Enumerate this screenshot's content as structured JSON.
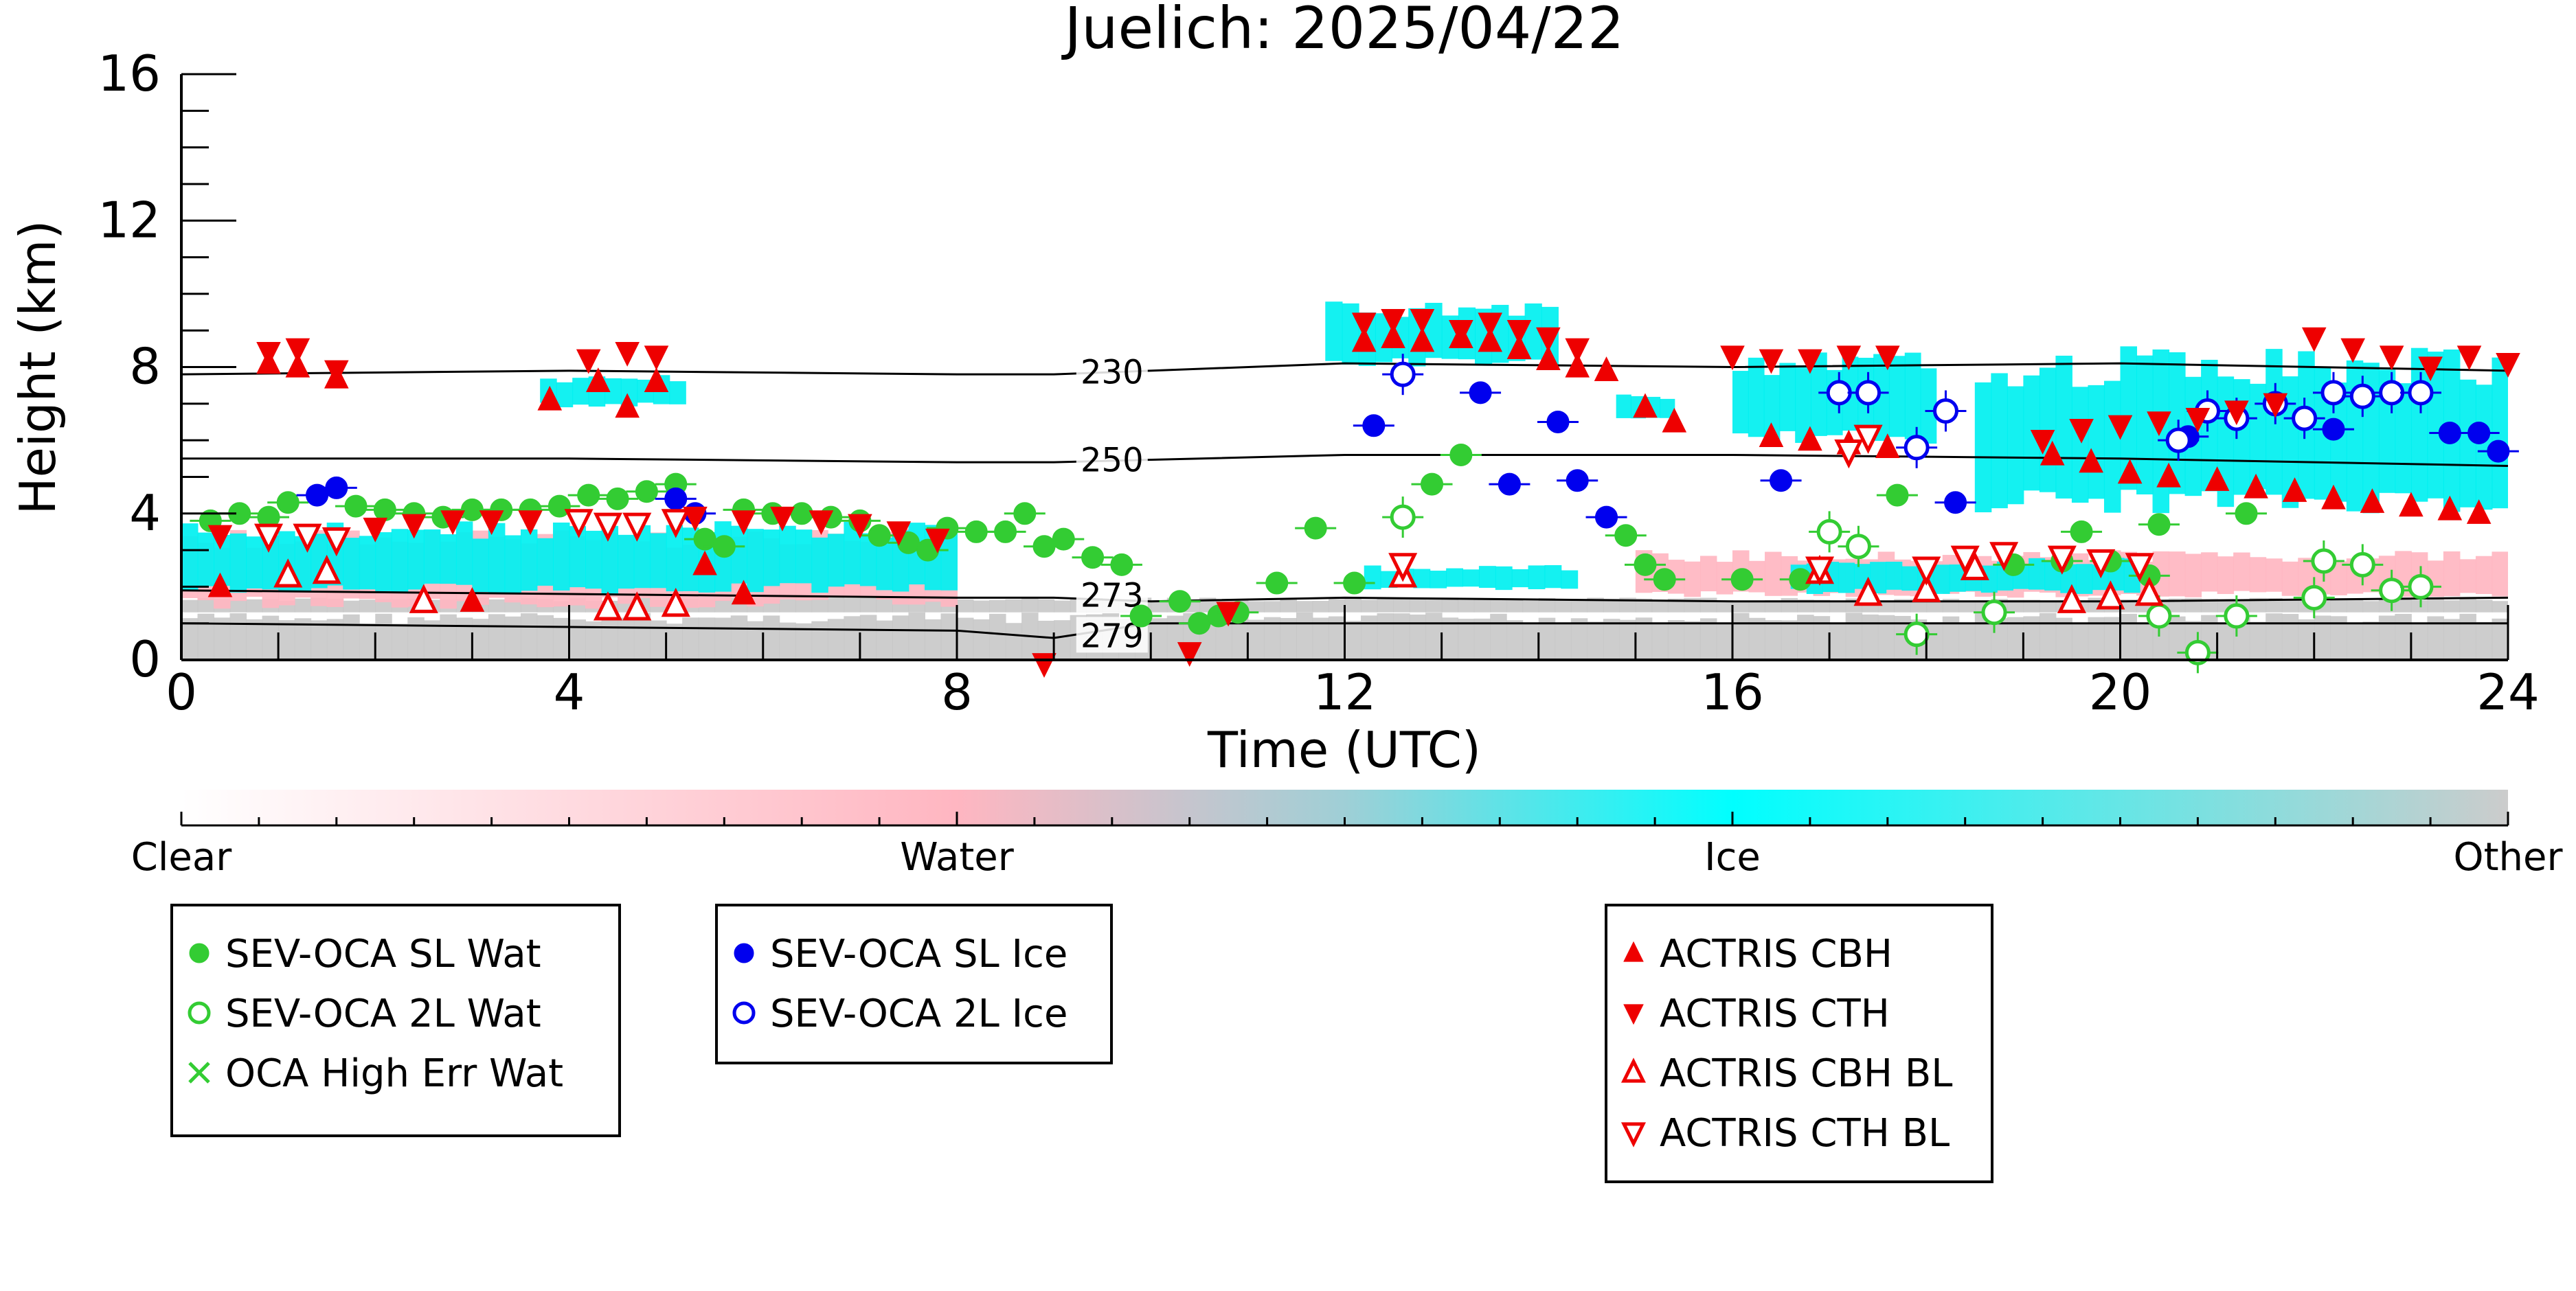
{
  "chart_data": {
    "type": "scatter",
    "title": "Juelich: 2025/04/22",
    "xlabel": "Time (UTC)",
    "ylabel": "Height (km)",
    "xlim": [
      0,
      24
    ],
    "ylim": [
      0,
      16
    ],
    "x_ticks": [
      0,
      4,
      8,
      12,
      16,
      20,
      24
    ],
    "y_ticks": [
      0,
      4,
      8,
      12,
      16
    ],
    "grid": false,
    "colorbar": {
      "labels": [
        "Clear",
        "Water",
        "Ice",
        "Other"
      ],
      "stops": [
        {
          "offset": 0.0,
          "color": "#ffffff"
        },
        {
          "offset": 0.333,
          "color": "#ffb6c1"
        },
        {
          "offset": 0.5,
          "color": "#9fcfd6"
        },
        {
          "offset": 0.667,
          "color": "#00ffff"
        },
        {
          "offset": 1.0,
          "color": "#cccccc"
        }
      ]
    },
    "colors": {
      "water": "#33cc33",
      "ice": "#0000ee",
      "actris": "#ee0000",
      "cloud_ice": "#00f0f0",
      "cloud_water": "#ffb6c1",
      "other": "#c8c8c8",
      "isotherm": "#000000"
    },
    "isotherms": [
      {
        "label": "230",
        "x": [
          0,
          4,
          8,
          9,
          12,
          16,
          20,
          24
        ],
        "y": [
          7.8,
          7.9,
          7.8,
          7.8,
          8.1,
          8.0,
          8.1,
          7.9
        ]
      },
      {
        "label": "250",
        "x": [
          0,
          4,
          8,
          9,
          12,
          16,
          20,
          24
        ],
        "y": [
          5.5,
          5.5,
          5.4,
          5.4,
          5.6,
          5.6,
          5.5,
          5.3
        ]
      },
      {
        "label": "273",
        "x": [
          0,
          4,
          8,
          9,
          10,
          12,
          16,
          20,
          24
        ],
        "y": [
          1.9,
          1.8,
          1.7,
          1.7,
          1.6,
          1.7,
          1.6,
          1.6,
          1.7
        ]
      },
      {
        "label": "279",
        "x": [
          0,
          4,
          8,
          9,
          10,
          12,
          16,
          20,
          24
        ],
        "y": [
          1.0,
          0.9,
          0.8,
          0.6,
          1.0,
          1.0,
          1.0,
          1.0,
          1.0
        ]
      }
    ],
    "legends": [
      {
        "entries": [
          {
            "label": "SEV-OCA SL Wat",
            "marker": "filled-circle",
            "color": "#33cc33"
          },
          {
            "label": "SEV-OCA 2L Wat",
            "marker": "open-circle",
            "color": "#33cc33"
          },
          {
            "label": "OCA High Err Wat",
            "marker": "cross",
            "color": "#33cc33"
          }
        ]
      },
      {
        "entries": [
          {
            "label": "SEV-OCA SL Ice",
            "marker": "filled-circle",
            "color": "#0000ee"
          },
          {
            "label": "SEV-OCA 2L Ice",
            "marker": "open-circle",
            "color": "#0000ee"
          }
        ]
      },
      {
        "entries": [
          {
            "label": "ACTRIS CBH",
            "marker": "filled-triangle-up",
            "color": "#ee0000"
          },
          {
            "label": "ACTRIS CTH",
            "marker": "filled-triangle-down",
            "color": "#ee0000"
          },
          {
            "label": "ACTRIS CBH BL",
            "marker": "open-triangle-up",
            "color": "#ee0000"
          },
          {
            "label": "ACTRIS CTH BL",
            "marker": "open-triangle-down",
            "color": "#ee0000"
          }
        ]
      }
    ],
    "cloud_regions": [
      {
        "class": "other",
        "x0": 0,
        "x1": 24,
        "y0": 0,
        "y1": 1.3
      },
      {
        "class": "other",
        "x0": 0,
        "x1": 24,
        "y0": 1.3,
        "y1": 1.7
      },
      {
        "class": "water",
        "x0": 0,
        "x1": 8.0,
        "y0": 1.4,
        "y1": 3.6
      },
      {
        "class": "ice",
        "x0": 0,
        "x1": 8.0,
        "y0": 1.8,
        "y1": 3.8
      },
      {
        "class": "ice",
        "x0": 3.7,
        "x1": 5.2,
        "y0": 6.9,
        "y1": 7.8
      },
      {
        "class": "ice",
        "x0": 11.8,
        "x1": 14.2,
        "y0": 8.0,
        "y1": 9.8
      },
      {
        "class": "ice",
        "x0": 14.8,
        "x1": 15.4,
        "y0": 6.5,
        "y1": 7.3
      },
      {
        "class": "ice",
        "x0": 16.0,
        "x1": 18.1,
        "y0": 5.9,
        "y1": 8.4
      },
      {
        "class": "ice",
        "x0": 18.5,
        "x1": 24.0,
        "y0": 4.0,
        "y1": 8.6
      },
      {
        "class": "water",
        "x0": 15.0,
        "x1": 24.0,
        "y0": 1.7,
        "y1": 3.0
      },
      {
        "class": "ice",
        "x0": 16.6,
        "x1": 20.2,
        "y0": 1.8,
        "y1": 2.8
      },
      {
        "class": "ice",
        "x0": 12.2,
        "x1": 14.4,
        "y0": 1.9,
        "y1": 2.6
      }
    ],
    "series": [
      {
        "name": "SEV-OCA SL Wat",
        "marker": "filled-circle",
        "color": "#33cc33",
        "x": [
          0.3,
          0.6,
          0.9,
          1.1,
          1.8,
          2.1,
          2.4,
          2.7,
          3.0,
          3.3,
          3.6,
          3.9,
          4.2,
          4.5,
          4.8,
          5.1,
          5.4,
          5.6,
          5.8,
          6.1,
          6.4,
          6.7,
          7.0,
          7.2,
          7.5,
          7.7,
          7.9,
          8.2,
          8.5,
          8.7,
          8.9,
          9.1,
          9.4,
          9.7,
          9.9,
          10.3,
          10.5,
          10.7,
          10.9,
          11.3,
          11.7,
          12.1,
          12.9,
          13.2,
          14.9,
          15.1,
          15.3,
          16.1,
          16.7,
          17.7,
          18.9,
          19.4,
          19.6,
          19.9,
          20.3,
          20.4,
          21.3
        ],
        "y": [
          3.8,
          4.0,
          3.9,
          4.3,
          4.2,
          4.1,
          4.0,
          3.9,
          4.1,
          4.1,
          4.1,
          4.2,
          4.5,
          4.4,
          4.6,
          4.8,
          3.3,
          3.1,
          4.1,
          4.0,
          4.0,
          3.9,
          3.8,
          3.4,
          3.2,
          3.0,
          3.6,
          3.5,
          3.5,
          4.0,
          3.1,
          3.3,
          2.8,
          2.6,
          1.2,
          1.6,
          1.0,
          1.2,
          1.3,
          2.1,
          3.6,
          2.1,
          4.8,
          5.6,
          3.4,
          2.6,
          2.2,
          2.2,
          2.2,
          4.5,
          2.6,
          2.7,
          3.5,
          2.7,
          2.3,
          3.7,
          4.0
        ]
      },
      {
        "name": "SEV-OCA 2L Wat",
        "marker": "open-circle",
        "color": "#33cc33",
        "x": [
          12.6,
          17.0,
          17.3,
          17.9,
          18.7,
          20.4,
          20.8,
          21.2,
          22.0,
          22.1,
          22.5,
          22.8,
          23.1
        ],
        "y": [
          3.9,
          3.5,
          3.1,
          0.7,
          1.3,
          1.2,
          0.2,
          1.2,
          1.7,
          2.7,
          2.6,
          1.9,
          2.0
        ]
      },
      {
        "name": "SEV-OCA SL Ice",
        "marker": "filled-circle",
        "color": "#0000ee",
        "x": [
          1.4,
          1.6,
          5.1,
          5.3,
          12.3,
          13.4,
          13.7,
          14.2,
          14.4,
          14.7,
          16.5,
          18.3,
          20.7,
          22.2,
          23.4,
          23.7,
          23.9
        ],
        "y": [
          4.5,
          4.7,
          4.4,
          4.0,
          6.4,
          7.3,
          4.8,
          6.5,
          4.9,
          3.9,
          4.9,
          4.3,
          6.1,
          6.3,
          6.2,
          6.2,
          5.7
        ]
      },
      {
        "name": "SEV-OCA 2L Ice",
        "marker": "open-circle",
        "color": "#0000ee",
        "x": [
          12.6,
          17.1,
          17.4,
          17.9,
          18.2,
          20.6,
          20.9,
          21.2,
          21.6,
          21.9,
          22.2,
          22.5,
          22.8,
          23.1
        ],
        "y": [
          7.8,
          7.3,
          7.3,
          5.8,
          6.8,
          6.0,
          6.8,
          6.6,
          7.0,
          6.6,
          7.3,
          7.2,
          7.3,
          7.3
        ]
      },
      {
        "name": "ACTRIS CBH",
        "marker": "filled-triangle-up",
        "color": "#ee0000",
        "x": [
          0.4,
          0.9,
          1.2,
          1.6,
          3.8,
          4.3,
          4.6,
          4.9,
          12.2,
          12.5,
          12.8,
          13.2,
          13.5,
          13.8,
          14.1,
          14.4,
          14.7,
          15.1,
          15.4,
          16.4,
          16.8,
          17.2,
          17.6,
          19.3,
          19.7,
          20.1,
          20.5,
          21.0,
          21.4,
          21.8,
          22.2,
          22.6,
          23.0,
          23.4,
          23.7,
          3.0,
          5.4,
          5.8
        ],
        "y": [
          2.0,
          8.1,
          8.0,
          7.7,
          7.1,
          7.6,
          6.9,
          7.6,
          8.7,
          8.8,
          8.7,
          8.8,
          8.7,
          8.5,
          8.2,
          8.0,
          7.9,
          6.9,
          6.5,
          6.1,
          6.0,
          5.9,
          5.8,
          5.6,
          5.4,
          5.1,
          5.0,
          4.9,
          4.7,
          4.6,
          4.4,
          4.3,
          4.2,
          4.1,
          4.0,
          1.6,
          2.6,
          1.8
        ]
      },
      {
        "name": "ACTRIS CTH",
        "marker": "filled-triangle-down",
        "color": "#ee0000",
        "x": [
          0.4,
          0.9,
          1.2,
          1.6,
          2.0,
          2.4,
          2.8,
          3.2,
          3.6,
          4.2,
          4.6,
          4.9,
          5.3,
          5.8,
          6.2,
          6.6,
          7.0,
          7.4,
          7.8,
          12.2,
          12.5,
          12.8,
          13.2,
          13.5,
          13.8,
          14.1,
          14.4,
          16.0,
          16.4,
          16.8,
          17.2,
          17.6,
          19.2,
          19.6,
          20.0,
          20.4,
          20.8,
          21.2,
          21.6,
          22.0,
          22.4,
          22.8,
          23.2,
          23.6,
          24.0,
          8.9,
          10.4,
          10.8
        ],
        "y": [
          3.4,
          8.4,
          8.5,
          7.9,
          3.6,
          3.7,
          3.8,
          3.8,
          3.8,
          8.2,
          8.4,
          8.3,
          3.9,
          3.8,
          3.9,
          3.8,
          3.7,
          3.5,
          3.3,
          9.2,
          9.3,
          9.3,
          9.0,
          9.2,
          9.0,
          8.8,
          8.5,
          8.3,
          8.2,
          8.2,
          8.3,
          8.3,
          6.0,
          6.3,
          6.4,
          6.5,
          6.6,
          6.8,
          7.0,
          8.8,
          8.5,
          8.3,
          8.0,
          8.3,
          8.1,
          -0.1,
          0.2,
          1.3
        ]
      },
      {
        "name": "ACTRIS CBH BL",
        "marker": "open-triangle-up",
        "color": "#ee0000",
        "x": [
          1.1,
          1.5,
          2.5,
          4.4,
          4.7,
          5.1,
          12.6,
          16.9,
          17.4,
          18.0,
          18.5,
          19.5,
          19.9,
          20.3
        ],
        "y": [
          2.3,
          2.4,
          1.6,
          1.4,
          1.4,
          1.5,
          2.3,
          2.4,
          1.8,
          1.9,
          2.5,
          1.6,
          1.7,
          1.8
        ]
      },
      {
        "name": "ACTRIS CTH BL",
        "marker": "open-triangle-down",
        "color": "#ee0000",
        "x": [
          0.9,
          1.3,
          1.6,
          4.1,
          4.4,
          4.7,
          5.1,
          12.6,
          16.9,
          17.2,
          17.4,
          18.0,
          18.4,
          18.8,
          19.4,
          19.8,
          20.2
        ],
        "y": [
          3.4,
          3.4,
          3.3,
          3.8,
          3.7,
          3.7,
          3.8,
          2.6,
          2.5,
          5.7,
          6.1,
          2.5,
          2.8,
          2.9,
          2.8,
          2.7,
          2.6
        ]
      }
    ]
  }
}
